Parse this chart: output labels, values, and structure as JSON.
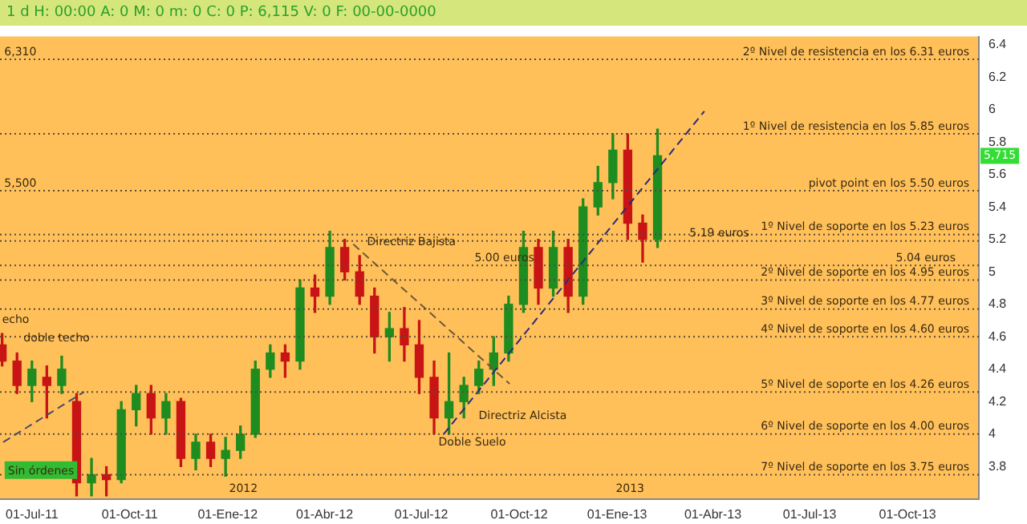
{
  "chart_data": {
    "type": "candlestick",
    "subtitle": "1 d H: 00:00 A: 0 M: 0 m: 0 C: 0 P: 6,115 V: 0 F: 00-00-0000",
    "x": [
      "2011-06-03",
      "2011-06-17",
      "2011-07-01",
      "2011-07-15",
      "2011-07-29",
      "2011-08-12",
      "2011-08-26",
      "2011-09-09",
      "2011-09-23",
      "2011-10-07",
      "2011-10-21",
      "2011-11-04",
      "2011-11-18",
      "2011-12-02",
      "2011-12-16",
      "2011-12-30",
      "2012-01-13",
      "2012-01-27",
      "2012-02-10",
      "2012-02-24",
      "2012-03-09",
      "2012-03-23",
      "2012-04-06",
      "2012-04-20",
      "2012-05-04",
      "2012-05-18",
      "2012-06-01",
      "2012-06-15",
      "2012-06-29",
      "2012-07-13",
      "2012-07-27",
      "2012-08-10",
      "2012-08-24",
      "2012-09-07",
      "2012-09-21",
      "2012-10-05",
      "2012-10-19",
      "2012-11-02",
      "2012-11-16",
      "2012-11-30",
      "2012-12-14",
      "2012-12-28",
      "2013-01-11",
      "2013-01-25",
      "2013-02-08"
    ],
    "ohlc": [
      [
        4.55,
        4.62,
        4.42,
        4.45
      ],
      [
        4.45,
        4.5,
        4.25,
        4.3
      ],
      [
        4.3,
        4.45,
        4.2,
        4.4
      ],
      [
        4.35,
        4.42,
        4.1,
        4.3
      ],
      [
        4.3,
        4.48,
        4.25,
        4.4
      ],
      [
        4.2,
        4.25,
        3.62,
        3.7
      ],
      [
        3.7,
        3.85,
        3.62,
        3.75
      ],
      [
        3.75,
        3.8,
        3.62,
        3.72
      ],
      [
        3.72,
        4.2,
        3.7,
        4.15
      ],
      [
        4.15,
        4.3,
        4.05,
        4.25
      ],
      [
        4.25,
        4.3,
        4.0,
        4.1
      ],
      [
        4.1,
        4.25,
        4.0,
        4.2
      ],
      [
        4.2,
        4.22,
        3.8,
        3.85
      ],
      [
        3.85,
        4.0,
        3.78,
        3.95
      ],
      [
        3.95,
        4.0,
        3.8,
        3.85
      ],
      [
        3.85,
        3.98,
        3.74,
        3.9
      ],
      [
        3.9,
        4.05,
        3.85,
        4.0
      ],
      [
        4.0,
        4.45,
        3.98,
        4.4
      ],
      [
        4.4,
        4.55,
        4.35,
        4.5
      ],
      [
        4.5,
        4.55,
        4.35,
        4.45
      ],
      [
        4.45,
        4.95,
        4.4,
        4.9
      ],
      [
        4.9,
        4.98,
        4.75,
        4.85
      ],
      [
        4.85,
        5.25,
        4.8,
        5.15
      ],
      [
        5.15,
        5.2,
        4.95,
        5.0
      ],
      [
        5.0,
        5.1,
        4.8,
        4.85
      ],
      [
        4.85,
        4.9,
        4.5,
        4.6
      ],
      [
        4.6,
        4.75,
        4.45,
        4.65
      ],
      [
        4.65,
        4.78,
        4.45,
        4.55
      ],
      [
        4.55,
        4.7,
        4.25,
        4.35
      ],
      [
        4.35,
        4.45,
        4.0,
        4.1
      ],
      [
        4.1,
        4.5,
        4.0,
        4.2
      ],
      [
        4.2,
        4.35,
        4.1,
        4.3
      ],
      [
        4.3,
        4.45,
        4.25,
        4.4
      ],
      [
        4.4,
        4.6,
        4.3,
        4.5
      ],
      [
        4.5,
        4.85,
        4.45,
        4.8
      ],
      [
        4.8,
        5.25,
        4.75,
        5.15
      ],
      [
        5.15,
        5.2,
        4.8,
        4.9
      ],
      [
        4.9,
        5.25,
        4.85,
        5.15
      ],
      [
        5.15,
        5.2,
        4.75,
        4.85
      ],
      [
        4.85,
        5.45,
        4.8,
        5.4
      ],
      [
        5.4,
        5.65,
        5.35,
        5.55
      ],
      [
        5.55,
        5.85,
        5.45,
        5.75
      ],
      [
        5.75,
        5.85,
        5.2,
        5.3
      ],
      [
        5.3,
        5.35,
        5.06,
        5.2
      ],
      [
        5.2,
        5.88,
        5.15,
        5.715
      ]
    ],
    "colors": [
      "#c81414",
      "#c81414",
      "#1e8c1e",
      "#c81414",
      "#1e8c1e",
      "#c81414",
      "#1e8c1e",
      "#c81414",
      "#1e8c1e",
      "#1e8c1e",
      "#c81414",
      "#1e8c1e",
      "#c81414",
      "#1e8c1e",
      "#c81414",
      "#1e8c1e",
      "#1e8c1e",
      "#1e8c1e",
      "#1e8c1e",
      "#c81414",
      "#1e8c1e",
      "#c81414",
      "#1e8c1e",
      "#c81414",
      "#c81414",
      "#c81414",
      "#1e8c1e",
      "#c81414",
      "#c81414",
      "#c81414",
      "#1e8c1e",
      "#1e8c1e",
      "#1e8c1e",
      "#1e8c1e",
      "#1e8c1e",
      "#1e8c1e",
      "#c81414",
      "#1e8c1e",
      "#c81414",
      "#1e8c1e",
      "#1e8c1e",
      "#1e8c1e",
      "#c81414",
      "#c81414",
      "#1e8c1e"
    ],
    "series": [
      {
        "type": "line",
        "x": [
          "2011-06-04",
          "2011-08-19"
        ],
        "values": [
          3.95,
          4.26
        ],
        "color": "#4a4a6a",
        "line_style": "dashed"
      },
      {
        "type": "line",
        "x": [
          "2012-04-28",
          "2012-09-22"
        ],
        "values": [
          5.17,
          4.31
        ],
        "color": "#6b5a3a",
        "line_style": "dashed"
      },
      {
        "type": "line",
        "x": [
          "2012-07-22",
          "2013-03-24"
        ],
        "values": [
          4.0,
          5.99
        ],
        "color": "#2a2a7a",
        "line_style": "dashed"
      }
    ],
    "marker": "none",
    "xlim": [
      "2011-06-01",
      "2013-12-07"
    ],
    "xticks": [
      {
        "value": "2011-07-01",
        "label": "01-Jul-11"
      },
      {
        "value": "2011-10-01",
        "label": "01-Oct-11"
      },
      {
        "value": "2012-01-01",
        "label": "01-Ene-12"
      },
      {
        "value": "2012-04-01",
        "label": "01-Abr-12"
      },
      {
        "value": "2012-07-01",
        "label": "01-Jul-12"
      },
      {
        "value": "2012-10-01",
        "label": "01-Oct-12"
      },
      {
        "value": "2013-01-01",
        "label": "01-Ene-13"
      },
      {
        "value": "2013-04-01",
        "label": "01-Abr-13"
      },
      {
        "value": "2013-07-01",
        "label": "01-Jul-13"
      },
      {
        "value": "2013-10-01",
        "label": "01-Oct-13"
      }
    ],
    "ylim": [
      3.6,
      6.45
    ],
    "yticks": [
      3.8,
      4,
      4.2,
      4.4,
      4.6,
      4.8,
      5,
      5.2,
      5.4,
      5.6,
      5.8,
      6,
      6.2,
      6.4
    ],
    "ref_lines": [
      {
        "axis": "y",
        "value": 6.31,
        "label": "2º Nivel de resistencia en los 6.31 euros"
      },
      {
        "axis": "y",
        "value": 5.85,
        "label": "1º Nivel de resistencia en los 5.85 euros"
      },
      {
        "axis": "y",
        "value": 5.5,
        "label": "pivot point en los 5.50 euros"
      },
      {
        "axis": "y",
        "value": 5.23,
        "label": "1º Nivel de soporte en los 5.23 euros"
      },
      {
        "axis": "y",
        "value": 5.19
      },
      {
        "axis": "y",
        "value": 5.04
      },
      {
        "axis": "y",
        "value": 4.95,
        "label": "2º Nivel de soporte en los 4.95 euros"
      },
      {
        "axis": "y",
        "value": 4.77,
        "label": "3º Nivel de soporte en los 4.77 euros"
      },
      {
        "axis": "y",
        "value": 4.6,
        "label": "4º Nivel de soporte en los 4.60 euros"
      },
      {
        "axis": "y",
        "value": 4.26,
        "label": "5º Nivel de soporte en los 4.26 euros"
      },
      {
        "axis": "y",
        "value": 4.0,
        "label": "6º Nivel de soporte en los 4.00 euros"
      },
      {
        "axis": "y",
        "value": 3.75,
        "label": "7º Nivel de soporte en los 3.75 euros"
      }
    ],
    "annotations": [
      {
        "text": "6,310",
        "x": "2011-06-05",
        "y": 6.31
      },
      {
        "text": "5,500",
        "x": "2011-06-05",
        "y": 5.5
      },
      {
        "text": "5.19 euros",
        "x": "2013-03-10",
        "y": 5.19
      },
      {
        "text": "5.04 euros",
        "x": "2013-09-20",
        "y": 5.04
      },
      {
        "text": "echo",
        "x": "2011-06-03",
        "y": 4.66
      },
      "doble techo",
      {
        "text": "Directriz Bajista",
        "x": "2012-05-11",
        "y": 5.14
      },
      {
        "text": "5.00 euros",
        "x": "2012-08-20",
        "y": 5.04
      },
      "Directriz Alcista",
      "Doble Suelo",
      "Sin órdenes",
      "2012",
      "2013",
      "5,715"
    ]
  }
}
